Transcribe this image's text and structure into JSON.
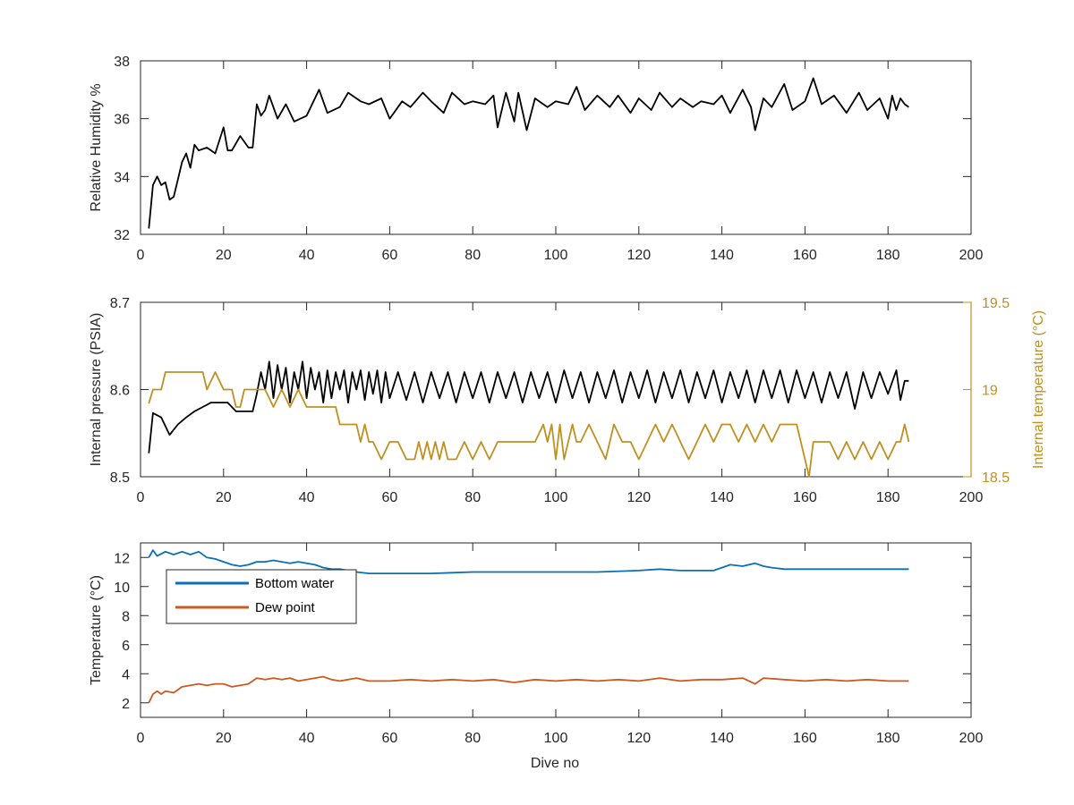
{
  "figure": {
    "xlabel": "Dive no"
  },
  "chart_data": [
    {
      "type": "line",
      "title": "",
      "xlabel": "",
      "ylabel": "Relative Humidity %",
      "xlim": [
        0,
        200
      ],
      "ylim": [
        32,
        38
      ],
      "xticks": [
        0,
        20,
        40,
        60,
        80,
        100,
        120,
        140,
        160,
        180,
        200
      ],
      "yticks": [
        32,
        34,
        36,
        38
      ],
      "grid": false,
      "series": [
        {
          "color": "#000000",
          "x": [
            2,
            3,
            4,
            5,
            6,
            7,
            8,
            9,
            10,
            11,
            12,
            13,
            14,
            16,
            18,
            20,
            21,
            22,
            24,
            26,
            27,
            28,
            29,
            30,
            31,
            33,
            35,
            37,
            40,
            43,
            45,
            48,
            50,
            53,
            55,
            58,
            60,
            63,
            65,
            68,
            70,
            73,
            75,
            78,
            80,
            83,
            85,
            86,
            88,
            90,
            91,
            93,
            95,
            98,
            100,
            103,
            105,
            107,
            110,
            113,
            115,
            118,
            120,
            123,
            125,
            128,
            130,
            133,
            135,
            138,
            140,
            142,
            145,
            147,
            148,
            150,
            152,
            155,
            157,
            160,
            162,
            164,
            167,
            170,
            173,
            175,
            178,
            180,
            181,
            182,
            183,
            184,
            185
          ],
          "y": [
            32.2,
            33.7,
            34.0,
            33.7,
            33.8,
            33.2,
            33.3,
            33.9,
            34.5,
            34.8,
            34.3,
            35.1,
            34.9,
            35.0,
            34.8,
            35.7,
            34.9,
            34.9,
            35.4,
            35.0,
            35.0,
            36.5,
            36.1,
            36.3,
            36.8,
            36.0,
            36.5,
            35.9,
            36.1,
            37.0,
            36.2,
            36.4,
            36.9,
            36.6,
            36.5,
            36.7,
            36.0,
            36.6,
            36.4,
            36.9,
            36.6,
            36.2,
            36.9,
            36.5,
            36.6,
            36.5,
            36.8,
            35.7,
            36.9,
            35.9,
            36.9,
            35.6,
            36.7,
            36.4,
            36.6,
            36.5,
            37.1,
            36.3,
            36.8,
            36.4,
            36.8,
            36.2,
            36.7,
            36.3,
            36.9,
            36.4,
            36.7,
            36.4,
            36.6,
            36.5,
            36.8,
            36.2,
            37.0,
            36.4,
            35.6,
            36.7,
            36.4,
            37.2,
            36.3,
            36.6,
            37.4,
            36.5,
            36.8,
            36.2,
            36.9,
            36.3,
            36.7,
            36.0,
            36.8,
            36.3,
            36.7,
            36.5,
            36.4
          ]
        }
      ]
    },
    {
      "type": "line",
      "title": "",
      "xlabel": "",
      "ylabel": "Internal pressure (PSIA)",
      "ylabel_right": "Internal temperature (°C)",
      "xlim": [
        0,
        200
      ],
      "ylim": [
        8.5,
        8.7
      ],
      "ylim_right": [
        18.5,
        19.5
      ],
      "xticks": [
        0,
        20,
        40,
        60,
        80,
        100,
        120,
        140,
        160,
        180,
        200
      ],
      "yticks": [
        "8.5",
        "8.6",
        "8.7"
      ],
      "yticks_right": [
        "18.5",
        "19",
        "19.5"
      ],
      "right_axis_color": "#c09020",
      "grid": false,
      "series": [
        {
          "axis": "left",
          "color": "#000000",
          "x": [
            2,
            3,
            5,
            7,
            9,
            11,
            13,
            15,
            17,
            19,
            21,
            23,
            25,
            27,
            28,
            29,
            30,
            31,
            32,
            33,
            34,
            35,
            36,
            37,
            38,
            39,
            40,
            41,
            42,
            43,
            44,
            45,
            46,
            47,
            48,
            49,
            50,
            51,
            52,
            53,
            54,
            55,
            56,
            57,
            58,
            59,
            60,
            62,
            64,
            66,
            68,
            70,
            72,
            74,
            76,
            78,
            80,
            82,
            84,
            86,
            88,
            90,
            92,
            94,
            96,
            98,
            100,
            102,
            104,
            106,
            108,
            110,
            112,
            114,
            116,
            118,
            120,
            122,
            124,
            126,
            128,
            130,
            132,
            134,
            136,
            138,
            140,
            142,
            144,
            146,
            148,
            150,
            152,
            154,
            156,
            158,
            160,
            162,
            164,
            166,
            168,
            170,
            172,
            174,
            176,
            178,
            180,
            182,
            183,
            184,
            185
          ],
          "y": [
            8.527,
            8.573,
            8.568,
            8.548,
            8.56,
            8.568,
            8.575,
            8.58,
            8.585,
            8.585,
            8.585,
            8.575,
            8.575,
            8.575,
            8.595,
            8.62,
            8.6,
            8.632,
            8.59,
            8.628,
            8.6,
            8.625,
            8.585,
            8.62,
            8.6,
            8.632,
            8.59,
            8.625,
            8.6,
            8.62,
            8.585,
            8.622,
            8.59,
            8.62,
            8.6,
            8.622,
            8.585,
            8.62,
            8.6,
            8.622,
            8.588,
            8.62,
            8.595,
            8.622,
            8.585,
            8.62,
            8.59,
            8.62,
            8.588,
            8.62,
            8.585,
            8.62,
            8.59,
            8.62,
            8.585,
            8.62,
            8.59,
            8.62,
            8.585,
            8.62,
            8.59,
            8.62,
            8.585,
            8.62,
            8.59,
            8.62,
            8.585,
            8.622,
            8.59,
            8.62,
            8.585,
            8.62,
            8.59,
            8.622,
            8.585,
            8.62,
            8.59,
            8.622,
            8.585,
            8.62,
            8.59,
            8.622,
            8.585,
            8.62,
            8.59,
            8.622,
            8.585,
            8.62,
            8.59,
            8.622,
            8.585,
            8.622,
            8.59,
            8.622,
            8.585,
            8.622,
            8.59,
            8.62,
            8.585,
            8.62,
            8.59,
            8.62,
            8.578,
            8.62,
            8.59,
            8.62,
            8.595,
            8.622,
            8.588,
            8.61,
            8.61
          ]
        },
        {
          "axis": "right",
          "color": "#c09020",
          "x": [
            2,
            3,
            5,
            6,
            10,
            15,
            16,
            18,
            20,
            22,
            23,
            24,
            25,
            27,
            30,
            32,
            34,
            36,
            38,
            40,
            42,
            44,
            47,
            48,
            50,
            52,
            53,
            54,
            55,
            56,
            58,
            60,
            62,
            64,
            65,
            66,
            67,
            68,
            69,
            70,
            71,
            72,
            73,
            74,
            76,
            78,
            80,
            82,
            84,
            86,
            88,
            90,
            95,
            97,
            98,
            99,
            100,
            101,
            102,
            103,
            104,
            105,
            106,
            108,
            110,
            112,
            114,
            116,
            118,
            120,
            122,
            124,
            126,
            128,
            130,
            132,
            134,
            136,
            138,
            140,
            142,
            144,
            146,
            148,
            150,
            152,
            154,
            156,
            158,
            159,
            160,
            161,
            162,
            164,
            166,
            168,
            170,
            172,
            174,
            176,
            178,
            180,
            182,
            183,
            184,
            185
          ],
          "y": [
            18.92,
            19.0,
            19.0,
            19.1,
            19.1,
            19.1,
            19.0,
            19.1,
            19.0,
            19.0,
            18.9,
            18.9,
            19.0,
            19.0,
            19.0,
            18.9,
            19.0,
            18.9,
            19.0,
            18.9,
            18.9,
            18.9,
            18.9,
            18.8,
            18.8,
            18.8,
            18.7,
            18.8,
            18.7,
            18.7,
            18.6,
            18.7,
            18.7,
            18.6,
            18.6,
            18.6,
            18.7,
            18.6,
            18.7,
            18.6,
            18.7,
            18.6,
            18.7,
            18.6,
            18.6,
            18.7,
            18.6,
            18.7,
            18.6,
            18.7,
            18.7,
            18.7,
            18.7,
            18.8,
            18.7,
            18.8,
            18.6,
            18.8,
            18.6,
            18.7,
            18.8,
            18.7,
            18.7,
            18.8,
            18.7,
            18.6,
            18.8,
            18.7,
            18.7,
            18.6,
            18.7,
            18.8,
            18.7,
            18.8,
            18.7,
            18.6,
            18.7,
            18.8,
            18.7,
            18.8,
            18.8,
            18.7,
            18.8,
            18.7,
            18.8,
            18.7,
            18.8,
            18.8,
            18.8,
            18.7,
            18.6,
            18.5,
            18.7,
            18.7,
            18.7,
            18.6,
            18.7,
            18.6,
            18.7,
            18.6,
            18.7,
            18.6,
            18.7,
            18.7,
            18.8,
            18.7
          ]
        }
      ]
    },
    {
      "type": "line",
      "title": "",
      "xlabel": "Dive no",
      "ylabel": "Temperature (°C)",
      "xlim": [
        0,
        200
      ],
      "ylim": [
        1,
        13
      ],
      "xticks": [
        0,
        20,
        40,
        60,
        80,
        100,
        120,
        140,
        160,
        180,
        200
      ],
      "yticks": [
        2,
        4,
        6,
        8,
        10,
        12
      ],
      "grid": false,
      "legend_position": "top-left",
      "series": [
        {
          "name": "Bottom water",
          "color": "#0a6fb3",
          "x": [
            2,
            3,
            4,
            6,
            8,
            10,
            12,
            14,
            16,
            18,
            20,
            22,
            24,
            26,
            28,
            30,
            32,
            34,
            36,
            38,
            40,
            42,
            44,
            46,
            48,
            50,
            52,
            55,
            60,
            65,
            70,
            80,
            90,
            100,
            110,
            120,
            125,
            130,
            138,
            140,
            142,
            145,
            148,
            150,
            152,
            155,
            160,
            170,
            180,
            185
          ],
          "y": [
            12.0,
            12.5,
            12.1,
            12.4,
            12.2,
            12.4,
            12.2,
            12.4,
            12.0,
            11.9,
            11.7,
            11.5,
            11.4,
            11.5,
            11.7,
            11.7,
            11.8,
            11.7,
            11.6,
            11.7,
            11.6,
            11.5,
            11.3,
            11.2,
            11.2,
            11.1,
            11.0,
            10.9,
            10.9,
            10.9,
            10.9,
            11.0,
            11.0,
            11.0,
            11.0,
            11.1,
            11.2,
            11.1,
            11.1,
            11.3,
            11.5,
            11.4,
            11.6,
            11.4,
            11.3,
            11.2,
            11.2,
            11.2,
            11.2,
            11.2
          ]
        },
        {
          "name": "Dew point",
          "color": "#cc5a1e",
          "x": [
            2,
            3,
            4,
            5,
            6,
            8,
            10,
            12,
            14,
            16,
            18,
            20,
            22,
            24,
            26,
            28,
            30,
            32,
            34,
            36,
            38,
            40,
            42,
            44,
            46,
            48,
            50,
            52,
            55,
            60,
            65,
            70,
            75,
            80,
            85,
            90,
            95,
            100,
            105,
            110,
            115,
            120,
            125,
            130,
            135,
            140,
            145,
            148,
            150,
            155,
            160,
            165,
            170,
            175,
            180,
            185
          ],
          "y": [
            2.0,
            2.6,
            2.8,
            2.6,
            2.8,
            2.7,
            3.1,
            3.2,
            3.3,
            3.2,
            3.3,
            3.3,
            3.1,
            3.2,
            3.3,
            3.7,
            3.6,
            3.7,
            3.6,
            3.7,
            3.5,
            3.6,
            3.7,
            3.8,
            3.6,
            3.5,
            3.6,
            3.7,
            3.5,
            3.5,
            3.6,
            3.5,
            3.6,
            3.5,
            3.6,
            3.4,
            3.6,
            3.5,
            3.6,
            3.5,
            3.6,
            3.5,
            3.7,
            3.5,
            3.6,
            3.6,
            3.7,
            3.3,
            3.7,
            3.6,
            3.5,
            3.6,
            3.5,
            3.6,
            3.5,
            3.5
          ]
        }
      ]
    }
  ]
}
